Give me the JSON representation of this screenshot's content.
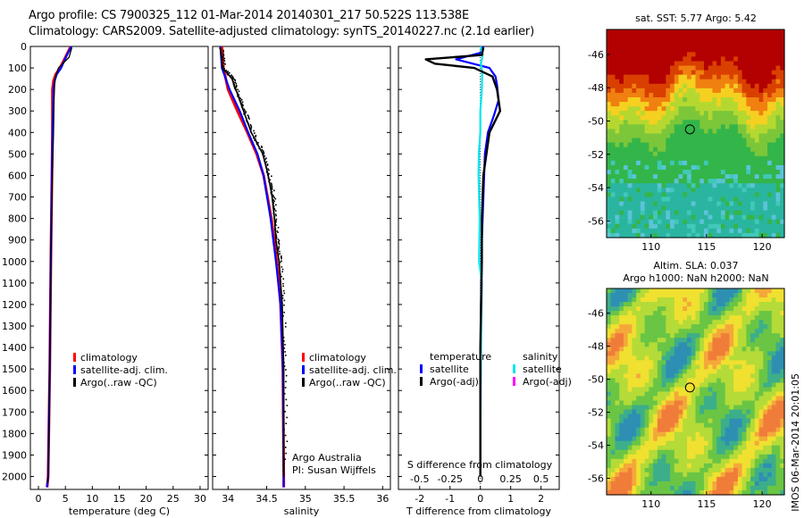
{
  "header": {
    "line1": "Argo profile: CS 7900325_112 01-Mar-2014 20140301_217 50.522S 113.538E",
    "line2": "Climatology: CARS2009. Satellite-adjusted climatology: synTS_20140227.nc (2.1d earlier)"
  },
  "stamp": "IMOS 06-Mar-2014 20:01:05",
  "colors": {
    "climatology": "#ff0000",
    "satellite_adj": "#0000ff",
    "argo": "#000000",
    "salinity_satellite": "#00e5ee",
    "salinity_argo": "#ff00ff"
  },
  "chart_data": [
    {
      "type": "line",
      "id": "temperature-profile",
      "xlabel": "temperature (deg C)",
      "ylabel": "",
      "xlim": [
        -1.5,
        31.5
      ],
      "ylim": [
        2060,
        0
      ],
      "xticks": [
        0,
        5,
        10,
        15,
        20,
        25,
        30
      ],
      "yticks": [
        0,
        100,
        200,
        300,
        400,
        500,
        600,
        700,
        800,
        900,
        1000,
        1100,
        1200,
        1300,
        1400,
        1500,
        1600,
        1700,
        1800,
        1900,
        2000
      ],
      "legend": [
        "climatology",
        "satellite-adj. clim.",
        "Argo(..raw -QC)"
      ],
      "series": [
        {
          "name": "climatology",
          "depth": [
            0,
            50,
            100,
            130,
            160,
            200,
            300,
            400,
            600,
            1000,
            1500,
            2000,
            2050
          ],
          "values": [
            6.0,
            5.0,
            4.0,
            3.2,
            2.8,
            2.6,
            2.6,
            2.6,
            2.5,
            2.3,
            2.1,
            1.8,
            1.6
          ]
        },
        {
          "name": "satellite-adj. clim.",
          "depth": [
            0,
            50,
            100,
            130,
            160,
            200,
            300,
            400,
            600,
            1000,
            1500,
            2000,
            2050
          ],
          "values": [
            6.1,
            5.1,
            4.2,
            3.4,
            3.0,
            2.8,
            2.7,
            2.6,
            2.5,
            2.3,
            2.1,
            1.8,
            1.6
          ]
        },
        {
          "name": "Argo",
          "depth": [
            5,
            50,
            80,
            100,
            140,
            180,
            250,
            400,
            600,
            1000,
            1500,
            2000,
            2030
          ],
          "values": [
            6.2,
            5.7,
            4.5,
            3.7,
            3.2,
            3.0,
            2.9,
            2.8,
            2.6,
            2.3,
            2.1,
            1.8,
            1.7
          ]
        }
      ]
    },
    {
      "type": "line",
      "id": "salinity-profile",
      "xlabel": "salinity",
      "ylabel": "",
      "xlim": [
        33.8,
        36.1
      ],
      "ylim": [
        2060,
        0
      ],
      "xticks": [
        34,
        34.5,
        35,
        35.5,
        36
      ],
      "legend": [
        "climatology",
        "satellite-adj. clim.",
        "Argo(..raw -QC)"
      ],
      "annotation": [
        "Argo Australia",
        "PI: Susan Wijffels"
      ],
      "series": [
        {
          "name": "climatology",
          "depth": [
            0,
            100,
            200,
            300,
            400,
            500,
            600,
            800,
            1000,
            1200,
            1500,
            2000,
            2050
          ],
          "values": [
            33.92,
            33.94,
            34.0,
            34.12,
            34.25,
            34.37,
            34.46,
            34.56,
            34.63,
            34.68,
            34.71,
            34.72,
            34.72
          ]
        },
        {
          "name": "satellite-adj. clim.",
          "depth": [
            0,
            100,
            200,
            300,
            400,
            500,
            600,
            800,
            1000,
            1200,
            1500,
            2000,
            2050
          ],
          "values": [
            33.9,
            33.92,
            34.02,
            34.15,
            34.26,
            34.38,
            34.46,
            34.55,
            34.62,
            34.68,
            34.71,
            34.72,
            34.72
          ]
        },
        {
          "name": "Argo",
          "depth": [
            5,
            100,
            150,
            200,
            300,
            400,
            500,
            600,
            700,
            800,
            900,
            1000,
            1200,
            1500,
            2000
          ],
          "values": [
            33.9,
            33.93,
            34.05,
            34.1,
            34.2,
            34.3,
            34.45,
            34.52,
            34.57,
            34.6,
            34.62,
            34.66,
            34.7,
            34.72,
            34.72
          ]
        }
      ]
    },
    {
      "type": "line",
      "id": "difference-profile",
      "xlabel": "T difference from climatology",
      "xlabel_top": "S difference from climatology",
      "xlim": [
        -2.7,
        2.6
      ],
      "ylim": [
        2060,
        0
      ],
      "xticks": [
        -2,
        -1,
        0,
        1,
        2
      ],
      "xticks_S": [
        -0.5,
        -0.25,
        0,
        0.25,
        0.5
      ],
      "legend_groups": [
        {
          "title": "temperature",
          "items": [
            "satellite",
            "Argo(-adj)"
          ]
        },
        {
          "title": "salinity",
          "items": [
            "satellite",
            "Argo(-adj)"
          ]
        }
      ],
      "series": [
        {
          "name": "temperature satellite",
          "depth": [
            0,
            30,
            60,
            100,
            140,
            180,
            250,
            320,
            400,
            500,
            700,
            900,
            1200,
            1600,
            2000
          ],
          "values": [
            0.1,
            0.0,
            -0.8,
            0.3,
            0.5,
            0.55,
            0.6,
            0.45,
            0.25,
            0.15,
            0.1,
            0.05,
            0.02,
            0.01,
            0.0
          ]
        },
        {
          "name": "temperature Argo(-adj)",
          "depth": [
            5,
            40,
            60,
            80,
            100,
            140,
            200,
            300,
            400,
            600,
            800,
            1000,
            1400,
            1800,
            2000
          ],
          "values": [
            0.1,
            0.05,
            -1.8,
            -1.5,
            -0.2,
            0.4,
            0.55,
            0.65,
            0.3,
            0.1,
            0.05,
            0.05,
            0.0,
            0.0,
            0.0
          ]
        },
        {
          "name": "salinity satellite",
          "depth": [
            0,
            40,
            80,
            120,
            200,
            300,
            400,
            500,
            600,
            800,
            1000,
            1100,
            1300,
            1600,
            2000
          ],
          "values": [
            0.0,
            0.08,
            0.02,
            0.06,
            0.05,
            0.0,
            0.0,
            -0.05,
            -0.06,
            -0.02,
            -0.04,
            0.05,
            0.03,
            0.01,
            0.0
          ]
        }
      ]
    },
    {
      "type": "heatmap",
      "id": "sst-map",
      "title": "sat. SST: 5.77 Argo: 5.42",
      "xticks": [
        110,
        115,
        120
      ],
      "yticks": [
        -46,
        -48,
        -50,
        -52,
        -54,
        -56
      ],
      "xlim": [
        106,
        122
      ],
      "ylim": [
        -57,
        -44.5
      ],
      "marker": {
        "lon": 113.5,
        "lat": -50.5
      }
    },
    {
      "type": "heatmap",
      "id": "sla-map",
      "title_line1": "Altim. SLA: 0.037",
      "title_line2": "Argo h1000: NaN h2000: NaN",
      "xticks": [
        110,
        115,
        120
      ],
      "yticks": [
        -46,
        -48,
        -50,
        -52,
        -54,
        -56
      ],
      "xlim": [
        106,
        122
      ],
      "ylim": [
        -57,
        -44.5
      ],
      "marker": {
        "lon": 113.5,
        "lat": -50.5
      }
    }
  ]
}
